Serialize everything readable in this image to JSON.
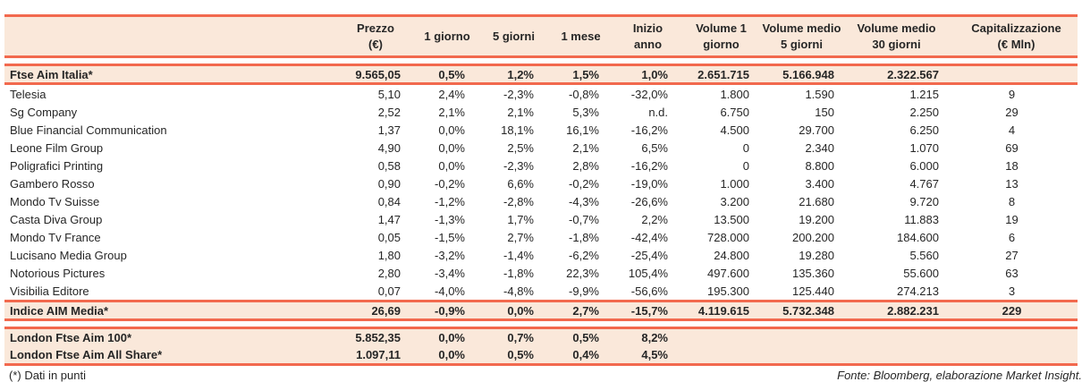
{
  "colors": {
    "accent": "#F2694E",
    "highlight_bg": "#FAE8DA",
    "text": "#262626"
  },
  "table": {
    "columns": [
      "",
      "Prezzo\n(€)",
      "1 giorno",
      "5 giorni",
      "1 mese",
      "Inizio anno",
      "Volume 1\ngiorno",
      "Volume medio\n5 giorni",
      "Volume medio\n30 giorni",
      "Capitalizzazione\n(€ Mln)"
    ],
    "sections": [
      {
        "type": "hl",
        "rows": [
          {
            "name": "Ftse Aim Italia*",
            "values": [
              "9.565,05",
              "0,5%",
              "1,2%",
              "1,5%",
              "1,0%",
              "2.651.715",
              "5.166.948",
              "2.322.567",
              ""
            ]
          }
        ]
      },
      {
        "type": "stock",
        "rows": [
          {
            "name": "Telesia",
            "values": [
              "5,10",
              "2,4%",
              "-2,3%",
              "-0,8%",
              "-32,0%",
              "1.800",
              "1.590",
              "1.215",
              "9"
            ]
          },
          {
            "name": "Sg Company",
            "values": [
              "2,52",
              "2,1%",
              "2,1%",
              "5,3%",
              "n.d.",
              "6.750",
              "150",
              "2.250",
              "29"
            ]
          },
          {
            "name": "Blue Financial Communication",
            "values": [
              "1,37",
              "0,0%",
              "18,1%",
              "16,1%",
              "-16,2%",
              "4.500",
              "29.700",
              "6.250",
              "4"
            ]
          },
          {
            "name": "Leone Film Group",
            "values": [
              "4,90",
              "0,0%",
              "2,5%",
              "2,1%",
              "6,5%",
              "0",
              "2.340",
              "1.070",
              "69"
            ]
          },
          {
            "name": "Poligrafici Printing",
            "values": [
              "0,58",
              "0,0%",
              "-2,3%",
              "2,8%",
              "-16,2%",
              "0",
              "8.800",
              "6.000",
              "18"
            ]
          },
          {
            "name": "Gambero Rosso",
            "values": [
              "0,90",
              "-0,2%",
              "6,6%",
              "-0,2%",
              "-19,0%",
              "1.000",
              "3.400",
              "4.767",
              "13"
            ]
          },
          {
            "name": "Mondo Tv Suisse",
            "values": [
              "0,84",
              "-1,2%",
              "-2,8%",
              "-4,3%",
              "-26,6%",
              "3.200",
              "21.680",
              "9.720",
              "8"
            ]
          },
          {
            "name": "Casta Diva Group",
            "values": [
              "1,47",
              "-1,3%",
              "1,7%",
              "-0,7%",
              "2,2%",
              "13.500",
              "19.200",
              "11.883",
              "19"
            ]
          },
          {
            "name": "Mondo Tv France",
            "values": [
              "0,05",
              "-1,5%",
              "2,7%",
              "-1,8%",
              "-42,4%",
              "728.000",
              "200.200",
              "184.600",
              "6"
            ]
          },
          {
            "name": "Lucisano Media Group",
            "values": [
              "1,80",
              "-3,2%",
              "-1,4%",
              "-6,2%",
              "-25,4%",
              "24.800",
              "19.280",
              "5.560",
              "27"
            ]
          },
          {
            "name": "Notorious Pictures",
            "values": [
              "2,80",
              "-3,4%",
              "-1,8%",
              "22,3%",
              "105,4%",
              "497.600",
              "135.360",
              "55.600",
              "63"
            ]
          },
          {
            "name": "Visibilia Editore",
            "values": [
              "0,07",
              "-4,0%",
              "-4,8%",
              "-9,9%",
              "-56,6%",
              "195.300",
              "125.440",
              "274.213",
              "3"
            ]
          }
        ]
      },
      {
        "type": "hl",
        "rows": [
          {
            "name": "Indice AIM Media*",
            "values": [
              "26,69",
              "-0,9%",
              "0,0%",
              "2,7%",
              "-15,7%",
              "4.119.615",
              "5.732.348",
              "2.882.231",
              "229"
            ]
          }
        ]
      },
      {
        "type": "spacer",
        "rows": []
      },
      {
        "type": "hl2",
        "rows": [
          {
            "name": "London Ftse Aim 100*",
            "values": [
              "5.852,35",
              "0,0%",
              "0,7%",
              "0,5%",
              "8,2%",
              "",
              "",
              "",
              ""
            ]
          },
          {
            "name": "London Ftse Aim All Share*",
            "values": [
              "1.097,11",
              "0,0%",
              "0,5%",
              "0,4%",
              "4,5%",
              "",
              "",
              "",
              ""
            ]
          }
        ]
      }
    ]
  },
  "footer": {
    "note": "(*) Dati in punti",
    "source": "Fonte: Bloomberg, elaborazione Market Insight."
  }
}
